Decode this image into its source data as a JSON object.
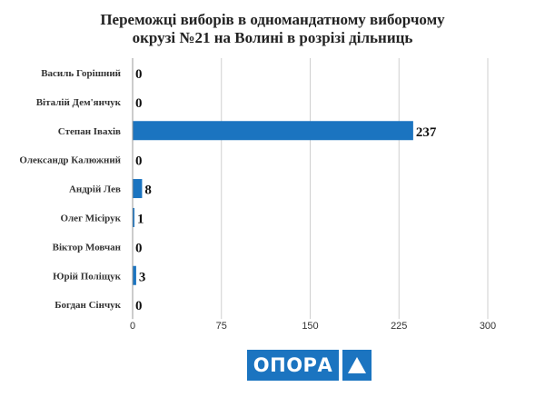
{
  "chart_data": {
    "type": "bar",
    "orientation": "horizontal",
    "title": "Переможці виборів в одномандатному виборчому окрузі №21 на Волині в розрізі дільниць",
    "title_lines": [
      "Переможці виборів в одномандатному виборчому",
      "окрузі №21 на Волині в розрізі дільниць"
    ],
    "categories": [
      "Василь Горішний",
      "Віталій Дем'янчук",
      "Степан Івахів",
      "Олександр Калюжний",
      "Андрій Лев",
      "Олег Місірук",
      "Віктор Мовчан",
      "Юрій Поліщук",
      "Богдан Сінчук"
    ],
    "values": [
      0,
      0,
      237,
      0,
      8,
      1,
      0,
      3,
      0
    ],
    "xlim": [
      0,
      300
    ],
    "xticks": [
      0,
      75,
      150,
      225,
      300
    ],
    "grid": true,
    "bar_color": "#1b74c0"
  },
  "logo": {
    "text": "ОПОРА",
    "color": "#1b74c0"
  }
}
